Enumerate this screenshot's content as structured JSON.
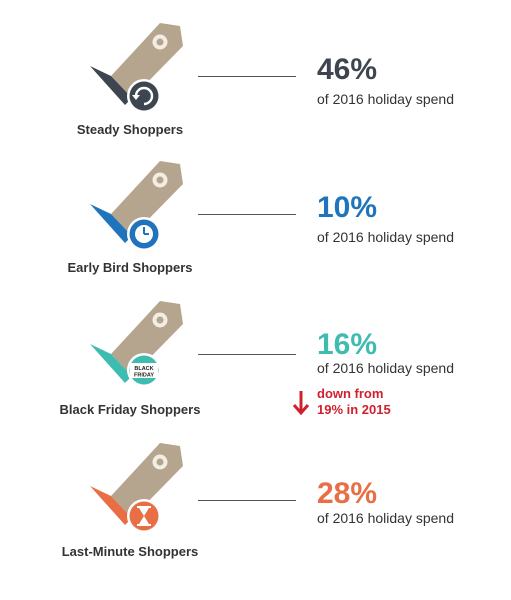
{
  "colors": {
    "tag": "#b5a58e",
    "steady": "#3d4650",
    "early": "#1f74bb",
    "black_friday": "#3fbcb0",
    "last_minute": "#e86f45",
    "down_note": "#d0202e"
  },
  "segments": [
    {
      "label": "Steady Shoppers",
      "percent": "46%",
      "subtitle": "of 2016 holiday spend",
      "icon": "refresh-icon"
    },
    {
      "label": "Early Bird Shoppers",
      "percent": "10%",
      "subtitle": "of 2016 holiday spend",
      "icon": "clock-icon"
    },
    {
      "label": "Black Friday Shoppers",
      "percent": "16%",
      "subtitle": "of 2016 holiday spend",
      "icon": "black-friday-badge-icon",
      "badge_line1": "BLACK",
      "badge_line2": "FRIDAY",
      "note_line1": "down from",
      "note_line2": "19% in 2015"
    },
    {
      "label": "Last-Minute Shoppers",
      "percent": "28%",
      "subtitle": "of 2016 holiday spend",
      "icon": "hourglass-icon"
    }
  ]
}
